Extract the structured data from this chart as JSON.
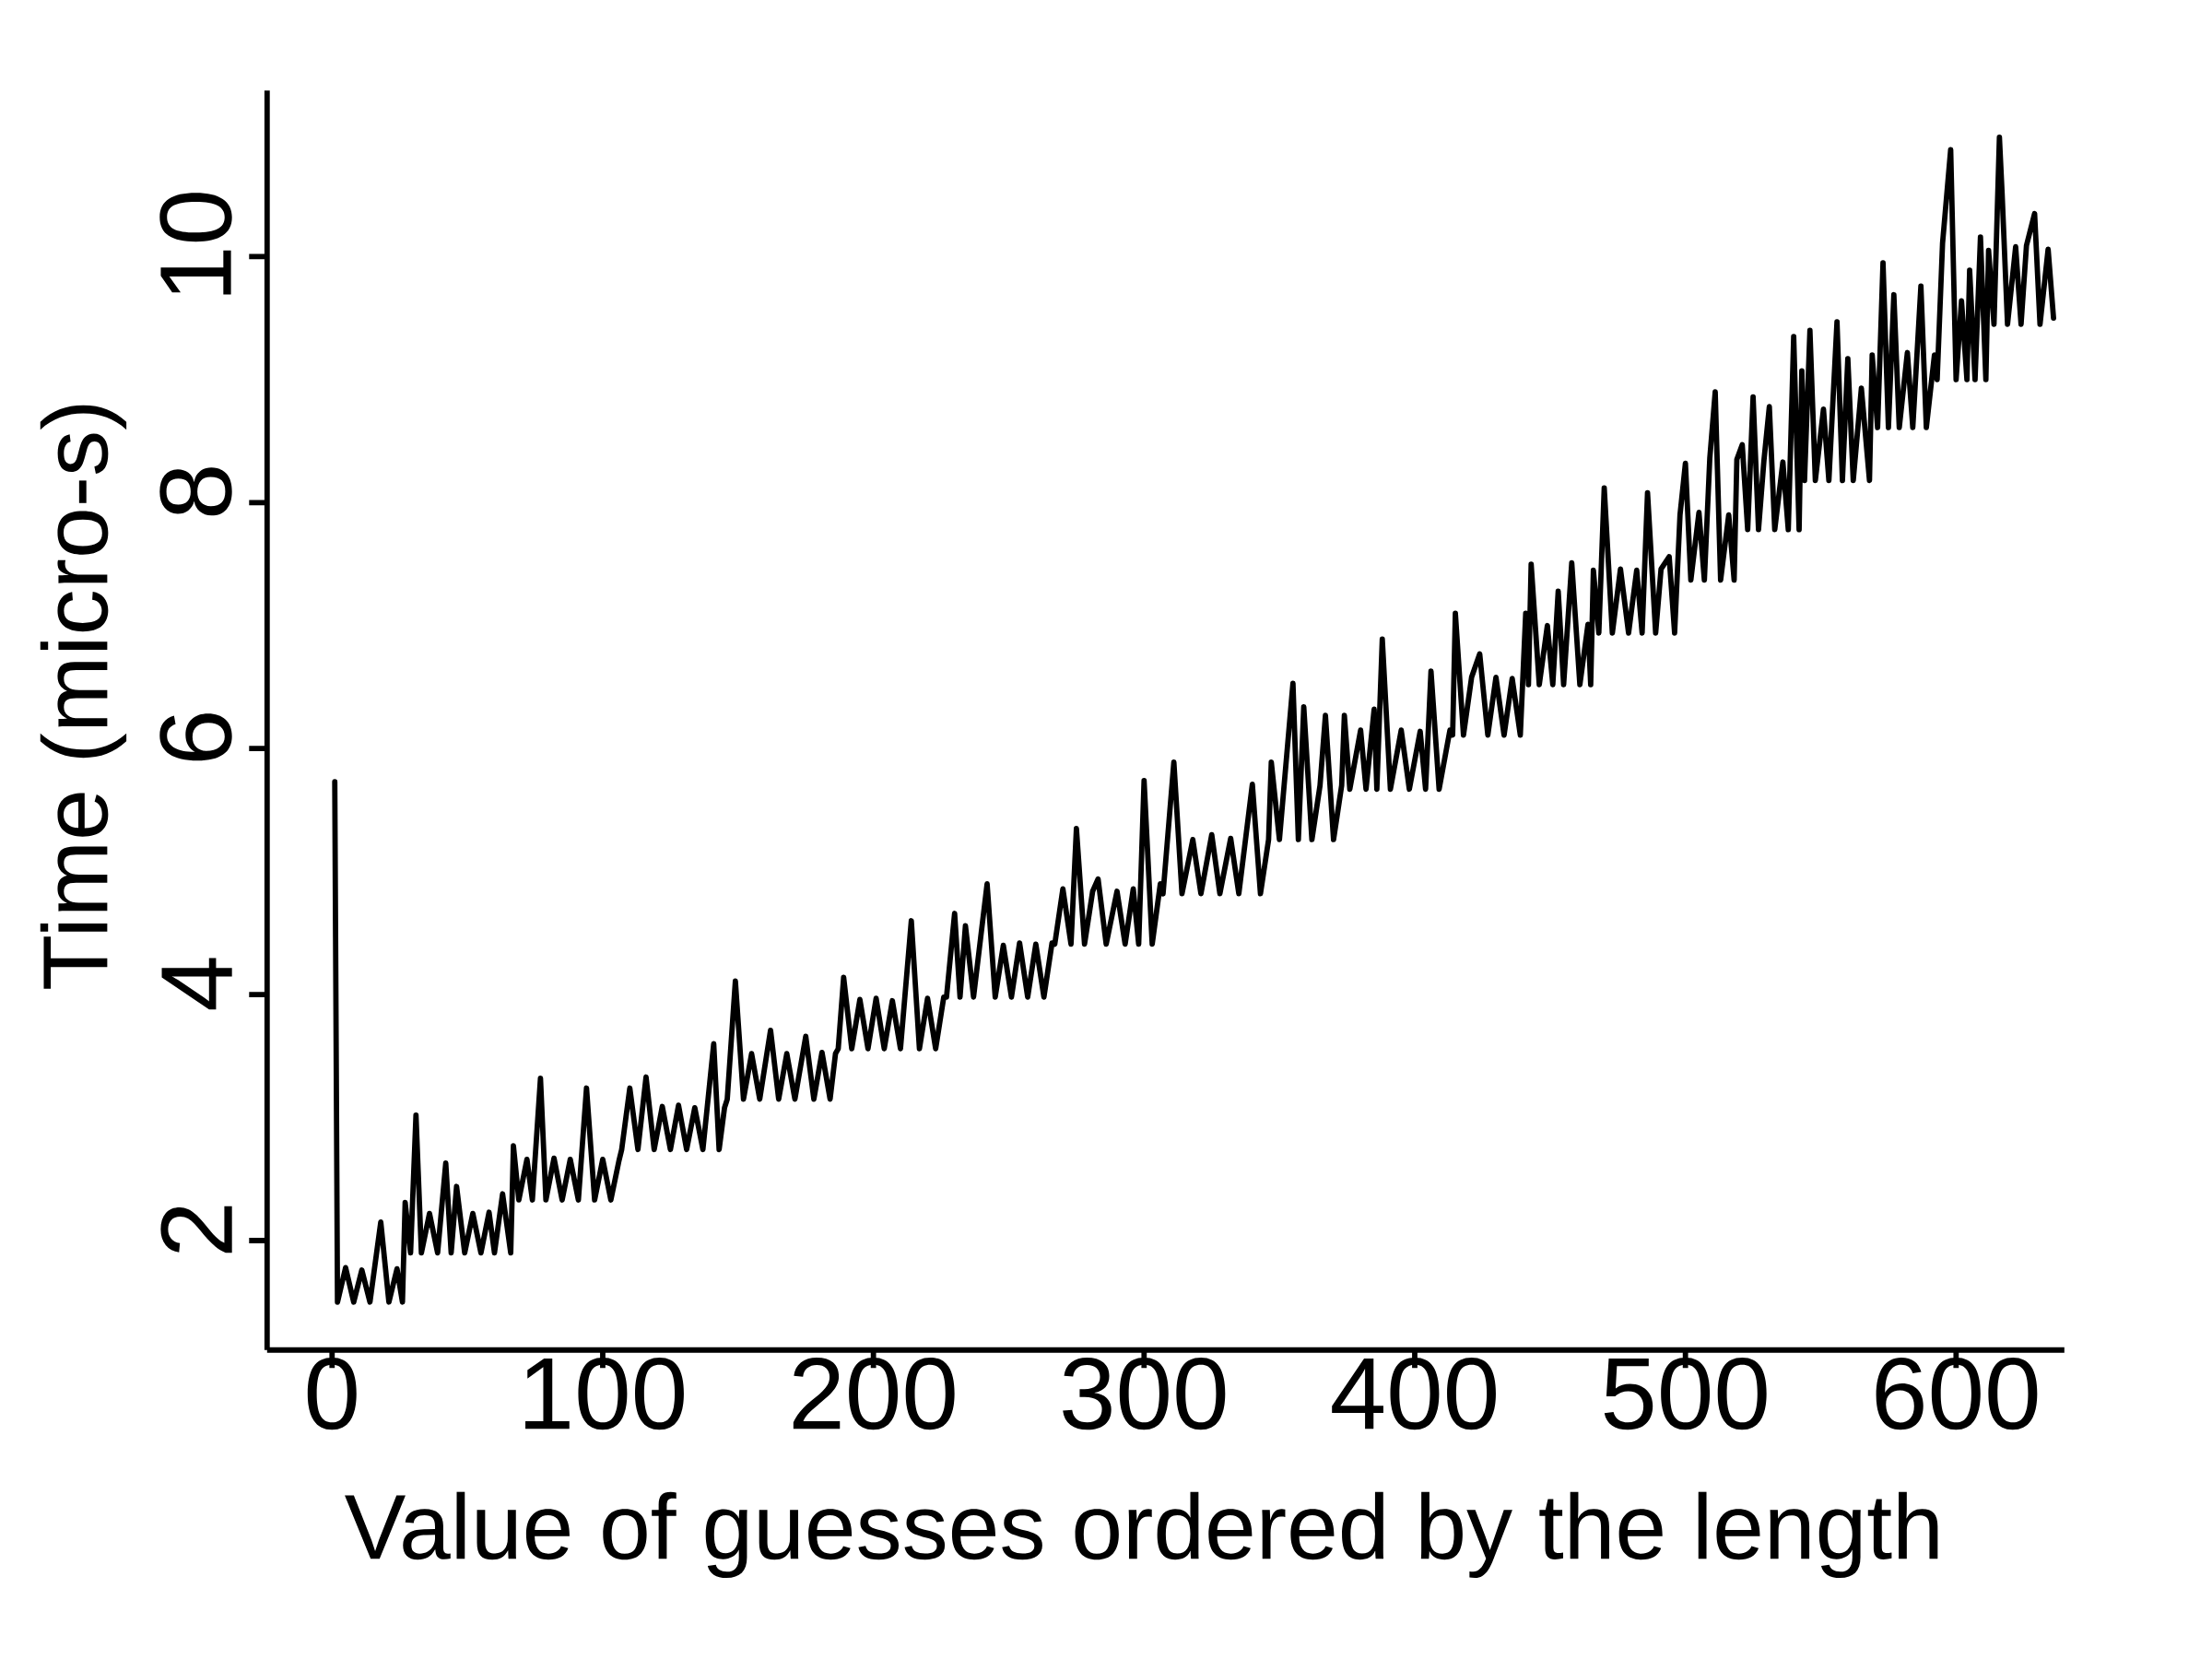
{
  "chart_data": {
    "type": "line",
    "xlabel": "Value of guesses ordered by the length",
    "ylabel": "Time (micro-s)",
    "xlim": [
      -24,
      640
    ],
    "ylim": [
      1.11,
      11.35
    ],
    "xticks": [
      0,
      100,
      200,
      300,
      400,
      500,
      600
    ],
    "yticks": [
      2,
      4,
      6,
      8,
      10
    ],
    "marker": "none",
    "line_style": "solid",
    "series": [
      {
        "color": "#000000",
        "x": [
          1,
          2,
          5,
          8,
          11,
          14,
          18,
          21,
          24,
          26,
          27,
          29,
          31,
          33,
          36,
          39,
          42,
          44,
          46,
          49,
          52,
          55,
          58,
          60,
          63,
          66,
          67,
          69,
          72,
          74,
          77,
          79,
          82,
          85,
          88,
          91,
          94,
          97,
          100,
          103,
          106,
          107,
          110,
          113,
          116,
          119,
          122,
          125,
          128,
          131,
          134,
          137,
          141,
          143,
          145,
          146,
          149,
          152,
          155,
          158,
          162,
          165,
          168,
          171,
          175,
          178,
          181,
          184,
          186,
          187,
          189,
          192,
          195,
          198,
          201,
          204,
          207,
          210,
          214,
          217,
          220,
          223,
          226,
          227,
          230,
          232,
          234,
          237,
          242,
          245,
          248,
          251,
          254,
          257,
          260,
          263,
          266,
          267,
          270,
          273,
          275,
          278,
          281,
          283,
          286,
          290,
          293,
          296,
          298,
          300,
          303,
          306,
          307,
          311,
          314,
          318,
          321,
          325,
          328,
          332,
          335,
          340,
          343,
          346,
          347,
          350,
          355,
          357,
          359,
          362,
          365,
          367,
          370,
          373,
          374,
          376,
          380,
          382,
          385,
          386,
          388,
          391,
          395,
          398,
          402,
          404,
          406,
          409,
          413,
          414,
          415,
          418,
          421,
          424,
          427,
          430,
          433,
          436,
          439,
          441,
          442,
          443,
          446,
          449,
          451,
          453,
          455,
          458,
          461,
          464,
          465,
          466,
          468,
          470,
          473,
          476,
          479,
          482,
          484,
          486,
          489,
          491,
          494,
          496,
          498,
          500,
          502,
          505,
          507,
          509,
          511,
          513,
          516,
          518,
          519,
          521,
          523,
          525,
          527,
          529,
          531,
          533,
          536,
          538,
          540,
          542,
          543,
          544,
          546,
          548,
          551,
          553,
          556,
          558,
          560,
          562,
          565,
          568,
          569,
          571,
          573,
          575,
          577,
          579,
          582,
          584,
          587,
          589,
          592,
          593,
          595,
          598,
          600,
          602,
          604,
          605,
          607,
          609,
          611,
          612,
          614,
          616,
          617,
          619,
          622,
          624,
          626,
          629,
          631,
          634,
          636
        ],
        "values": [
          5.73,
          1.5,
          1.78,
          1.5,
          1.76,
          1.5,
          2.15,
          1.5,
          1.77,
          1.5,
          2.31,
          1.9,
          3.02,
          1.9,
          2.22,
          1.9,
          2.63,
          1.9,
          2.44,
          1.9,
          2.22,
          1.9,
          2.23,
          1.9,
          2.38,
          1.9,
          2.77,
          2.33,
          2.66,
          2.33,
          3.32,
          2.33,
          2.67,
          2.33,
          2.66,
          2.33,
          3.24,
          2.33,
          2.66,
          2.33,
          2.65,
          2.74,
          3.24,
          2.74,
          3.33,
          2.74,
          3.09,
          2.74,
          3.1,
          2.74,
          3.08,
          2.74,
          3.6,
          2.74,
          3.08,
          3.15,
          4.11,
          3.15,
          3.52,
          3.15,
          3.71,
          3.15,
          3.52,
          3.15,
          3.66,
          3.15,
          3.53,
          3.15,
          3.52,
          3.56,
          4.14,
          3.56,
          3.96,
          3.56,
          3.97,
          3.56,
          3.95,
          3.56,
          4.6,
          3.56,
          3.97,
          3.56,
          3.98,
          3.98,
          4.66,
          3.98,
          4.56,
          3.98,
          4.9,
          3.98,
          4.4,
          3.98,
          4.42,
          3.98,
          4.41,
          3.98,
          4.42,
          4.41,
          4.86,
          4.41,
          5.35,
          4.41,
          4.84,
          4.94,
          4.41,
          4.84,
          4.41,
          4.86,
          4.41,
          5.74,
          4.41,
          4.9,
          4.82,
          5.89,
          4.82,
          5.26,
          4.82,
          5.3,
          4.82,
          5.27,
          4.82,
          5.71,
          4.82,
          5.26,
          5.89,
          5.26,
          6.53,
          5.26,
          6.34,
          5.26,
          5.7,
          6.27,
          5.26,
          5.7,
          6.27,
          5.67,
          6.15,
          5.67,
          6.32,
          5.67,
          6.89,
          5.67,
          6.15,
          5.67,
          6.14,
          5.67,
          6.63,
          5.67,
          6.15,
          6.11,
          7.1,
          6.11,
          6.58,
          6.77,
          6.11,
          6.58,
          6.11,
          6.57,
          6.11,
          7.1,
          6.52,
          7.5,
          6.52,
          7.0,
          6.52,
          7.28,
          6.52,
          7.51,
          6.52,
          7.01,
          6.52,
          7.45,
          6.94,
          8.12,
          6.94,
          7.46,
          6.94,
          7.45,
          6.94,
          8.08,
          6.94,
          7.46,
          7.56,
          6.94,
          7.9,
          8.32,
          7.37,
          7.92,
          7.37,
          8.36,
          8.9,
          7.37,
          7.9,
          7.37,
          8.35,
          8.47,
          7.78,
          8.86,
          7.78,
          8.34,
          8.78,
          7.78,
          8.33,
          7.78,
          9.35,
          7.78,
          9.07,
          8.18,
          9.4,
          8.18,
          8.76,
          8.18,
          9.47,
          8.18,
          9.17,
          8.18,
          8.93,
          8.18,
          9.2,
          8.61,
          9.95,
          8.61,
          9.69,
          8.61,
          9.22,
          8.61,
          9.76,
          8.61,
          9.2,
          9.0,
          10.11,
          10.87,
          9.0,
          9.64,
          9.0,
          9.89,
          9.0,
          10.16,
          9.0,
          10.05,
          9.45,
          10.97,
          10.51,
          9.45,
          10.08,
          9.45,
          10.09,
          10.35,
          9.45,
          10.06,
          9.5
        ]
      }
    ]
  }
}
